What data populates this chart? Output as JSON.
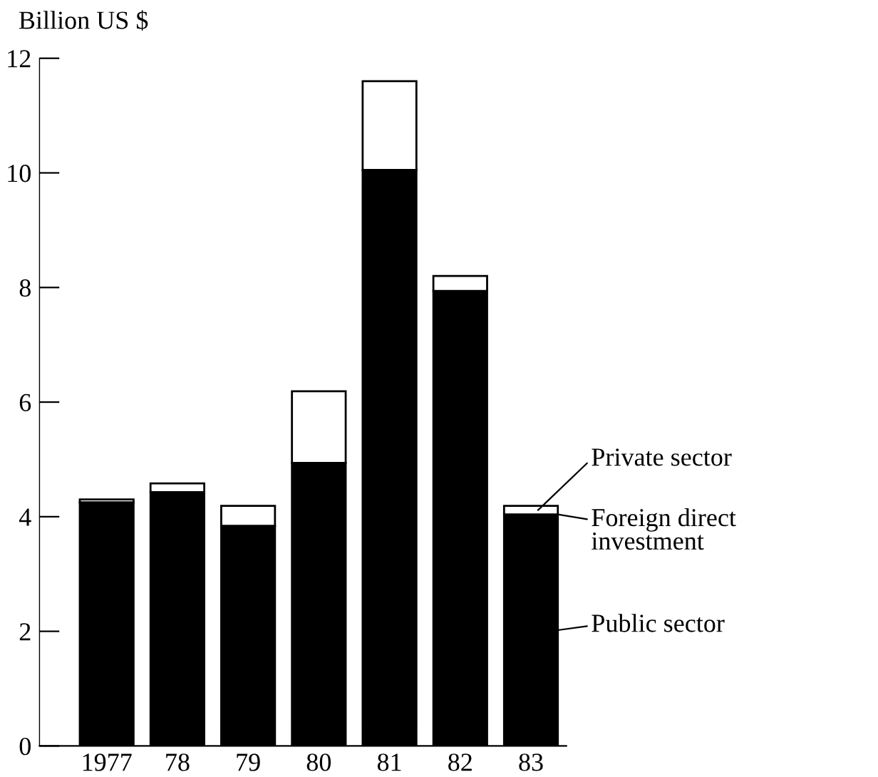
{
  "chart_data": {
    "type": "bar",
    "stacked": true,
    "ylabel": "Billion US $",
    "categories": [
      "1977",
      "78",
      "79",
      "80",
      "81",
      "82",
      "83"
    ],
    "series": [
      {
        "name": "Public sector",
        "color": "#000000",
        "values": [
          4.25,
          4.43,
          3.84,
          4.94,
          10.05,
          7.94,
          4.04
        ]
      },
      {
        "name": "Private sector",
        "color": "#ffffff",
        "values": [
          0.05,
          0.15,
          0.35,
          1.25,
          1.55,
          0.26,
          0.15
        ]
      }
    ],
    "annotations": [
      {
        "text": "Foreign direct\ninvestment",
        "x": "83",
        "y": 4.04
      }
    ],
    "ylim": [
      0,
      12
    ],
    "yticks": [
      0,
      2,
      4,
      6,
      8,
      10,
      12
    ],
    "grid": false,
    "legend": "right"
  }
}
